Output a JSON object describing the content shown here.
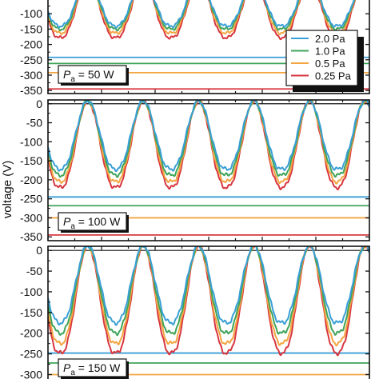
{
  "y_axis_label": "voltage (V)",
  "legend": {
    "entries": [
      {
        "label": "2.0 Pa",
        "color": "#3a9fd6"
      },
      {
        "label": "1.0 Pa",
        "color": "#3fa45a"
      },
      {
        "label": "0.5 Pa",
        "color": "#f3a541"
      },
      {
        "label": "0.25 Pa",
        "color": "#d8363f"
      }
    ]
  },
  "chart_data": [
    {
      "type": "line",
      "panel_label": {
        "symbol": "P",
        "subscript": "a",
        "value": " = 50 W"
      },
      "ylim": [
        -360,
        10
      ],
      "xlim": [
        0,
        5.8
      ],
      "y_ticks": [
        -100,
        -150,
        -200,
        -250,
        -300,
        -350
      ],
      "grid": false,
      "waveform": {
        "period": 1,
        "phase": 0.72,
        "max": 8
      },
      "series": [
        {
          "name": "2.0 Pa",
          "color": "#3a9fd6",
          "min": -140,
          "dc_level": -242
        },
        {
          "name": "1.0 Pa",
          "color": "#3fa45a",
          "min": -150,
          "dc_level": -262
        },
        {
          "name": "0.5 Pa",
          "color": "#f3a541",
          "min": -163,
          "dc_level": -292
        },
        {
          "name": "0.25 Pa",
          "color": "#d8363f",
          "min": -178,
          "dc_level": -345
        }
      ]
    },
    {
      "type": "line",
      "panel_label": {
        "symbol": "P",
        "subscript": "a",
        "value": " = 100 W"
      },
      "ylim": [
        -360,
        10
      ],
      "xlim": [
        0,
        5.8
      ],
      "y_ticks": [
        0,
        -50,
        -100,
        -150,
        -200,
        -250,
        -300,
        -350
      ],
      "grid": false,
      "waveform": {
        "period": 1,
        "phase": 0.72,
        "max": 8
      },
      "series": [
        {
          "name": "2.0 Pa",
          "color": "#3a9fd6",
          "min": -172,
          "dc_level": -245
        },
        {
          "name": "1.0 Pa",
          "color": "#3fa45a",
          "min": -188,
          "dc_level": -268
        },
        {
          "name": "0.5 Pa",
          "color": "#f3a541",
          "min": -205,
          "dc_level": -300
        },
        {
          "name": "0.25 Pa",
          "color": "#d8363f",
          "min": -220,
          "dc_level": -345
        }
      ]
    },
    {
      "type": "line",
      "panel_label": {
        "symbol": "P",
        "subscript": "a",
        "value": " = 150 W"
      },
      "ylim": [
        -330,
        10
      ],
      "xlim": [
        0,
        5.8
      ],
      "y_ticks": [
        0,
        -50,
        -100,
        -150,
        -200,
        -250,
        -300
      ],
      "grid": false,
      "waveform": {
        "period": 1,
        "phase": 0.72,
        "max": 12
      },
      "series": [
        {
          "name": "2.0 Pa",
          "color": "#3a9fd6",
          "min": -175,
          "dc_level": -248
        },
        {
          "name": "1.0 Pa",
          "color": "#3fa45a",
          "min": -200,
          "dc_level": -272
        },
        {
          "name": "0.5 Pa",
          "color": "#f3a541",
          "min": -225,
          "dc_level": -300
        },
        {
          "name": "0.25 Pa",
          "color": "#d8363f",
          "min": -248,
          "dc_level": -330
        }
      ]
    }
  ]
}
